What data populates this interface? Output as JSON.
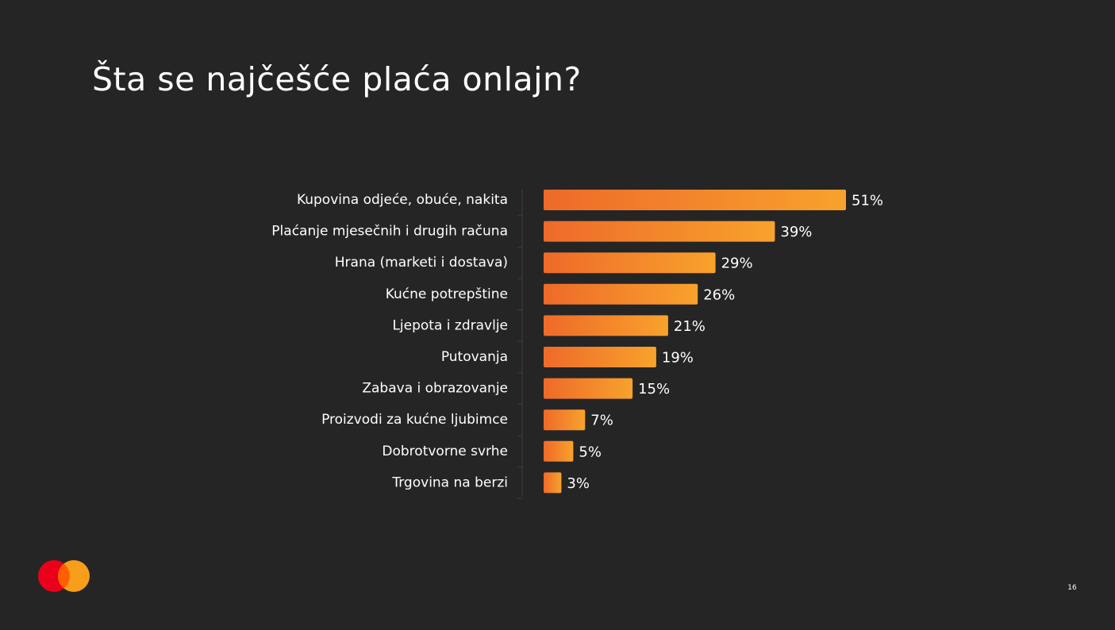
{
  "slide": {
    "title": "Šta se najčešće plaća onlajn?",
    "page_number": "16"
  },
  "logo": {
    "name": "mastercard-logo",
    "colors": [
      "#eb001b",
      "#f79e1b",
      "#ff5f00"
    ]
  },
  "colors": {
    "background": "#252525",
    "bar_start": "#ee6a2a",
    "bar_end": "#f8a22c",
    "text": "#ffffff",
    "axis": "#3e3e3e"
  },
  "chart_data": {
    "type": "bar",
    "orientation": "horizontal",
    "categories": [
      "Kupovina odjeće, obuće, nakita",
      "Plaćanje mjesečnih i drugih računa",
      "Hrana (marketi i dostava)",
      "Kućne potrepštine",
      "Ljepota i zdravlje",
      "Putovanja",
      "Zabava i obrazovanje",
      "Proizvodi za kućne ljubimce",
      "Dobrotvorne svrhe",
      "Trgovina na berzi"
    ],
    "values": [
      51,
      39,
      29,
      26,
      21,
      19,
      15,
      7,
      5,
      3
    ],
    "value_labels": [
      "51%",
      "39%",
      "29%",
      "26%",
      "21%",
      "19%",
      "15%",
      "7%",
      "5%",
      "3%"
    ],
    "unit": "%",
    "xlim": [
      0,
      51
    ],
    "grid": false,
    "legend": "none"
  }
}
